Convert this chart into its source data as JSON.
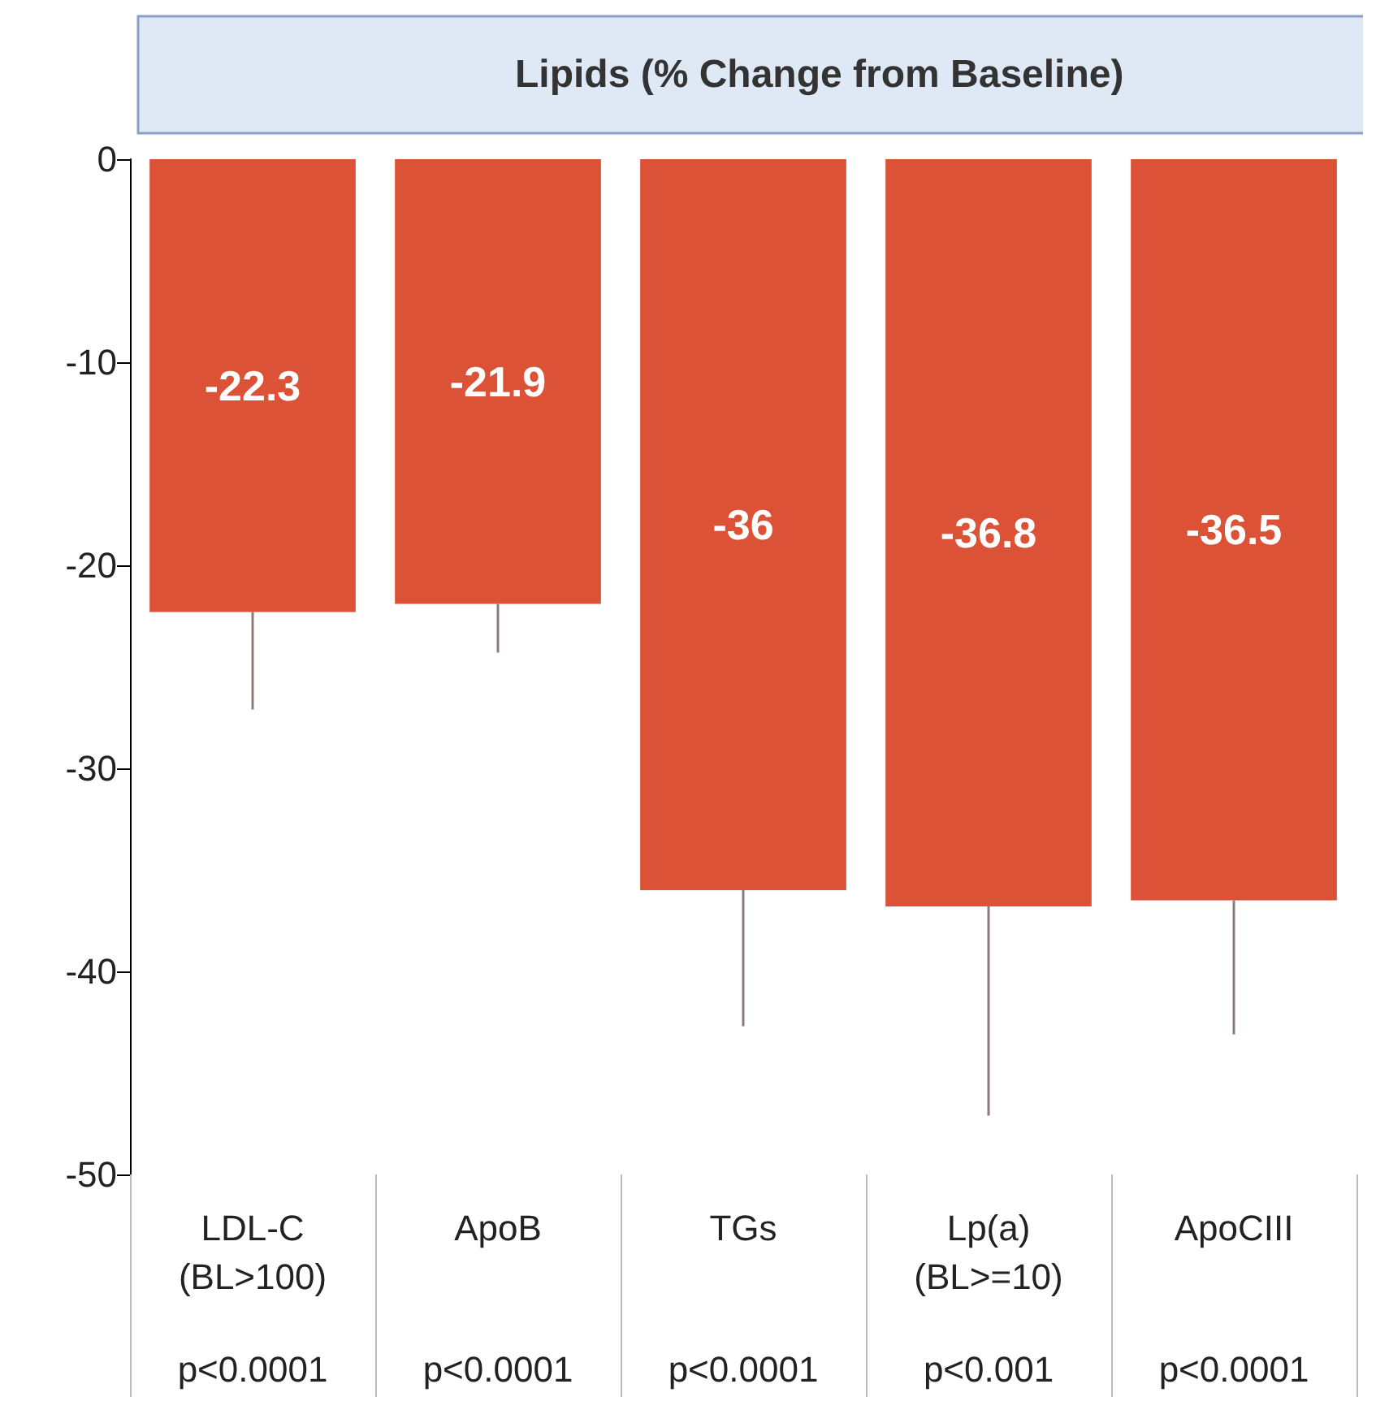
{
  "chart_data": {
    "type": "bar",
    "title": "Lipids (% Change from Baseline)",
    "categories": [
      "LDL-C\n(BL>100)",
      "ApoB",
      "TGs",
      "Lp(a)\n(BL>=10)",
      "ApoCIII"
    ],
    "values": [
      -22.3,
      -21.9,
      -36,
      -36.8,
      -36.5
    ],
    "color": "#db5236",
    "errors": [
      [
        -27.1,
        -22.3
      ],
      [
        -24.3,
        -21.9
      ],
      [
        -42.7,
        -36
      ],
      [
        -47.1,
        -36.8
      ],
      [
        -43.1,
        -36.5
      ]
    ],
    "data_labels": true,
    "ylim": [
      -50,
      0
    ],
    "yticks": [
      0,
      -10,
      -20,
      -30,
      -40,
      -50
    ],
    "grid": false,
    "annotations": [
      "p<0.0001",
      "p<0.0001",
      "p<0.0001",
      "p<0.001",
      "p<0.0001"
    ]
  }
}
